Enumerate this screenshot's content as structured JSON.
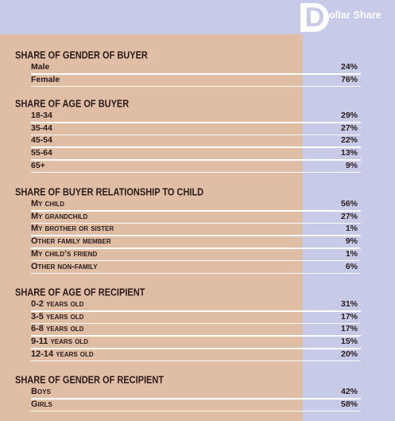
{
  "title": {
    "initial": "D",
    "rest": "ollar Share"
  },
  "chart_data": {
    "type": "table",
    "sections": [
      {
        "title": "SHARE OF GENDER OF BUYER",
        "rows": [
          {
            "label": "Male",
            "value": "24%"
          },
          {
            "label": "Female",
            "value": "76%"
          }
        ]
      },
      {
        "title": "SHARE OF AGE OF BUYER",
        "rows": [
          {
            "label": "18-34",
            "value": "29%"
          },
          {
            "label": "35-44",
            "value": "27%"
          },
          {
            "label": "45-54",
            "value": "22%"
          },
          {
            "label": "55-64",
            "value": "13%"
          },
          {
            "label": "65+",
            "value": "9%"
          }
        ]
      },
      {
        "title": "SHARE OF BUYER RELATIONSHIP TO CHILD",
        "rows": [
          {
            "label": "My child",
            "value": "56%"
          },
          {
            "label": "My grandchild",
            "value": "27%"
          },
          {
            "label": "My brother or sister",
            "value": "1%"
          },
          {
            "label": "Other family member",
            "value": "9%"
          },
          {
            "label": "My child’s friend",
            "value": "1%"
          },
          {
            "label": "Other non-family",
            "value": "6%"
          }
        ]
      },
      {
        "title": "SHARE OF AGE OF RECIPIENT",
        "rows": [
          {
            "label": "0-2 years old",
            "value": "31%"
          },
          {
            "label": "3-5 years old",
            "value": "17%"
          },
          {
            "label": "6-8 years old",
            "value": "17%"
          },
          {
            "label": "9-11 years old",
            "value": "15%"
          },
          {
            "label": "12-14 years old",
            "value": "20%"
          }
        ]
      },
      {
        "title": "SHARE OF GENDER OF RECIPIENT",
        "rows": [
          {
            "label": "Boys",
            "value": "42%"
          },
          {
            "label": "Girls",
            "value": "58%"
          }
        ]
      }
    ]
  },
  "colors": {
    "left_panel": "#dfbea5",
    "right_panel": "#c7cbe8",
    "rule": "#ffffff",
    "text": "#2a1a1a"
  }
}
